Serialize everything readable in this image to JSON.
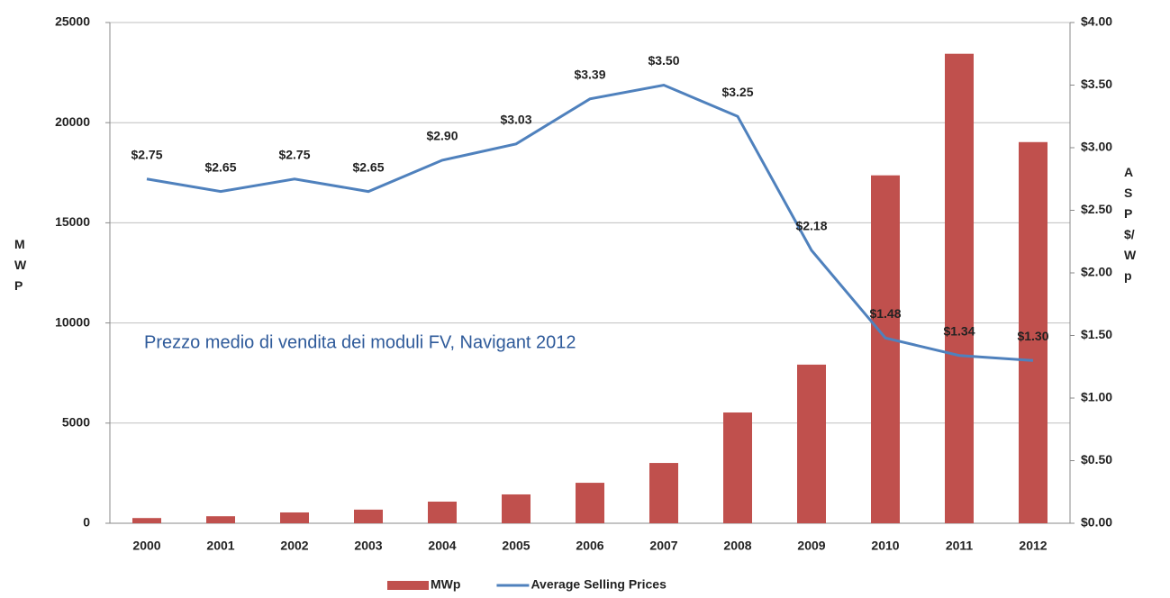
{
  "chart_data": {
    "type": "bar+line",
    "categories": [
      "2000",
      "2001",
      "2002",
      "2003",
      "2004",
      "2005",
      "2006",
      "2007",
      "2008",
      "2009",
      "2010",
      "2011",
      "2012"
    ],
    "series": [
      {
        "name": "MWp",
        "type": "bar",
        "color": "#c0504d",
        "axis": "y",
        "values": [
          260,
          350,
          540,
          680,
          1080,
          1440,
          2020,
          3010,
          5530,
          7920,
          17370,
          23440,
          19030
        ]
      },
      {
        "name": "Average Selling Prices",
        "type": "line",
        "color": "#4f81bd",
        "axis": "y2",
        "values": [
          2.75,
          2.65,
          2.75,
          2.65,
          2.9,
          3.03,
          3.39,
          3.5,
          3.25,
          2.18,
          1.48,
          1.34,
          1.3
        ],
        "value_labels": [
          "$2.75",
          "$2.65",
          "$2.75",
          "$2.65",
          "$2.90",
          "$3.03",
          "$3.39",
          "$3.50",
          "$3.25",
          "$2.18",
          "$1.48",
          "$1.34",
          "$1.30"
        ]
      }
    ],
    "y_label": "MWP",
    "y2_label": "ASP $/Wp",
    "annotation": "Prezzo medio di vendita dei moduli FV, Navigant 2012",
    "ylim": [
      0,
      25000
    ],
    "yticks": [
      0,
      5000,
      10000,
      15000,
      20000,
      25000
    ],
    "y2lim": [
      0,
      4
    ],
    "y2ticks": [
      {
        "value": 0,
        "label": "$0.00"
      },
      {
        "value": 0.5,
        "label": "$0.50"
      },
      {
        "value": 1,
        "label": "$1.00"
      },
      {
        "value": 1.5,
        "label": "$1.50"
      },
      {
        "value": 2,
        "label": "$2.00"
      },
      {
        "value": 2.5,
        "label": "$2.50"
      },
      {
        "value": 3,
        "label": "$3.00"
      },
      {
        "value": 3.5,
        "label": "$3.50"
      },
      {
        "value": 4,
        "label": "$4.00"
      }
    ],
    "grid": true,
    "legend": "bottom"
  }
}
